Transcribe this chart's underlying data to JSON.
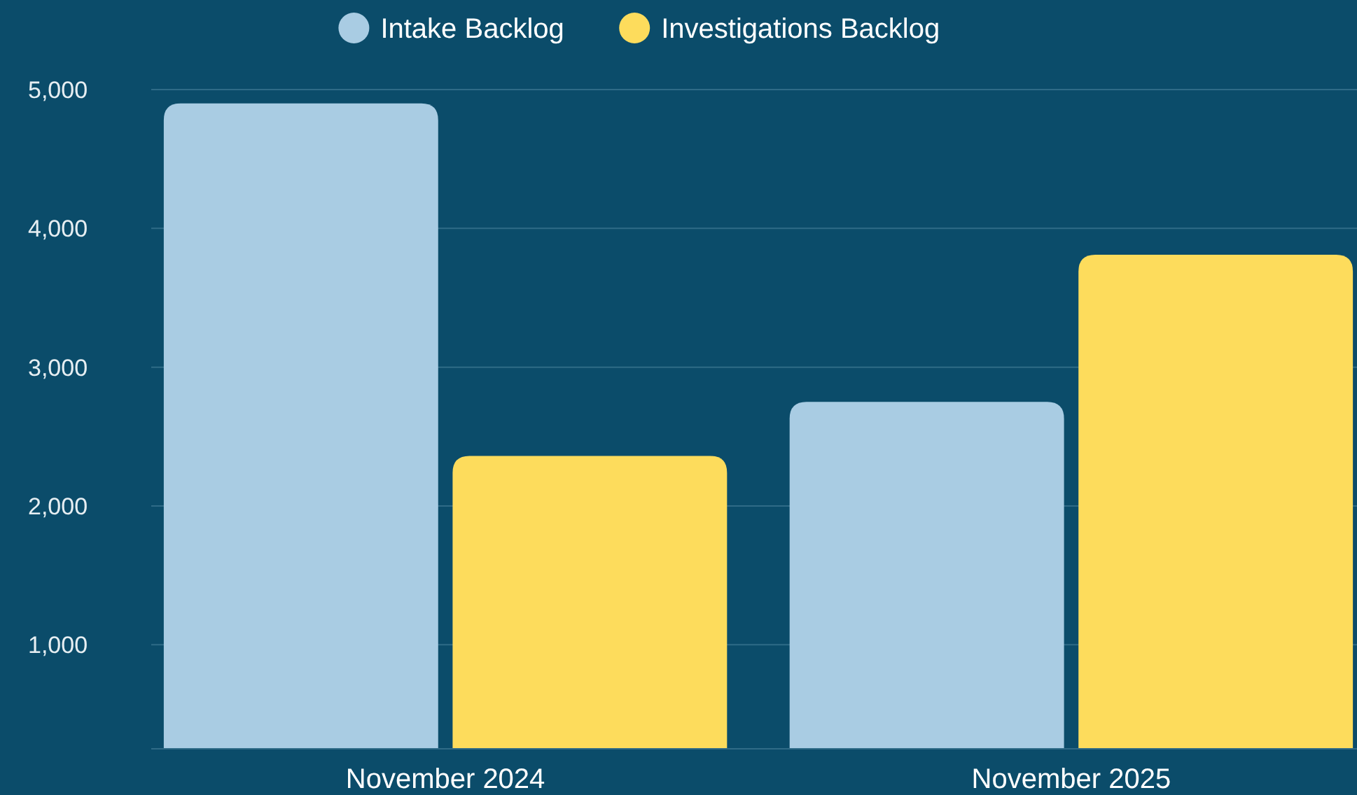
{
  "chart_data": {
    "type": "bar",
    "categories": [
      "November 2024",
      "November 2025"
    ],
    "series": [
      {
        "name": "Intake Backlog",
        "color": "#a9cce3",
        "values": [
          4900,
          2750
        ]
      },
      {
        "name": "Investigations Backlog",
        "color": "#fddc5c",
        "values": [
          2360,
          3810
        ]
      }
    ],
    "ylim": [
      250,
      5000
    ],
    "yticks": [
      {
        "value": 1000,
        "label": "1,000"
      },
      {
        "value": 2000,
        "label": "2,000"
      },
      {
        "value": 3000,
        "label": "3,000"
      },
      {
        "value": 4000,
        "label": "4,000"
      },
      {
        "value": 5000,
        "label": "5,000"
      }
    ],
    "grid": "y",
    "legend": "top"
  }
}
